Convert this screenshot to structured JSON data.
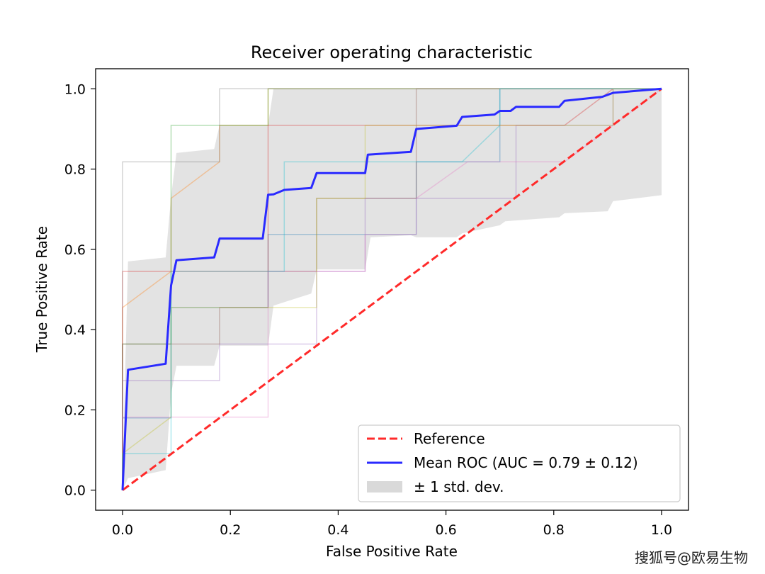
{
  "watermark": "搜狐号@欧易生物",
  "chart_data": {
    "type": "line",
    "title": "Receiver operating characteristic",
    "xlabel": "False Positive Rate",
    "ylabel": "True Positive Rate",
    "xlim": [
      -0.05,
      1.05
    ],
    "ylim": [
      -0.05,
      1.05
    ],
    "xticks": [
      "0.0",
      "0.2",
      "0.4",
      "0.6",
      "0.8",
      "1.0"
    ],
    "yticks": [
      "0.0",
      "0.2",
      "0.4",
      "0.6",
      "0.8",
      "1.0"
    ],
    "legend_position": "lower-right",
    "legend": [
      {
        "label": "Reference",
        "kind": "dashed-line",
        "color": "#ff2a2a"
      },
      {
        "label": "Mean ROC (AUC = 0.79 ± 0.12)",
        "kind": "line",
        "color": "#2a2aff"
      },
      {
        "label": "± 1 std. dev.",
        "kind": "patch",
        "color": "#d9d9d9"
      }
    ],
    "reference": {
      "x": [
        0,
        1
      ],
      "y": [
        0,
        1
      ],
      "color": "#ff2a2a"
    },
    "mean_roc": {
      "color": "#2a2aff",
      "x": [
        0,
        0.01,
        0.08,
        0.09,
        0.1,
        0.17,
        0.18,
        0.26,
        0.27,
        0.28,
        0.3,
        0.35,
        0.36,
        0.45,
        0.455,
        0.535,
        0.545,
        0.62,
        0.63,
        0.69,
        0.7,
        0.72,
        0.73,
        0.81,
        0.82,
        0.87,
        0.89,
        0.9,
        0.91,
        1.0
      ],
      "y": [
        0,
        0.3,
        0.315,
        0.51,
        0.573,
        0.58,
        0.627,
        0.627,
        0.736,
        0.737,
        0.748,
        0.753,
        0.79,
        0.79,
        0.836,
        0.843,
        0.9,
        0.908,
        0.93,
        0.936,
        0.945,
        0.945,
        0.955,
        0.955,
        0.97,
        0.977,
        0.98,
        0.985,
        0.99,
        1.0
      ]
    },
    "std_band": {
      "color": "#d9d9d9",
      "x": [
        0,
        0.01,
        0.08,
        0.09,
        0.1,
        0.17,
        0.18,
        0.27,
        0.28,
        0.35,
        0.36,
        0.45,
        0.46,
        0.535,
        0.545,
        0.62,
        0.63,
        0.7,
        0.71,
        0.81,
        0.82,
        0.9,
        0.91,
        1.0
      ],
      "upper": [
        0.04,
        0.57,
        0.58,
        0.73,
        0.84,
        0.85,
        0.91,
        0.91,
        1.0,
        1.0,
        1.0,
        1.0,
        1.0,
        1.0,
        1.0,
        1.0,
        1.0,
        1.0,
        1.0,
        1.0,
        1.0,
        1.0,
        1.0,
        1.0
      ],
      "lower": [
        0.0,
        0.03,
        0.05,
        0.24,
        0.31,
        0.31,
        0.36,
        0.36,
        0.46,
        0.49,
        0.55,
        0.55,
        0.63,
        0.635,
        0.63,
        0.63,
        0.64,
        0.66,
        0.67,
        0.68,
        0.69,
        0.695,
        0.72,
        0.735
      ]
    },
    "fold_curves": [
      {
        "color": "#1f77b4",
        "x": [
          0,
          0,
          0.09,
          0.09,
          0.27,
          0.27,
          0.45,
          0.45,
          0.545,
          0.545,
          0.7,
          0.7,
          1.0
        ],
        "y": [
          0,
          0.18,
          0.18,
          0.455,
          0.455,
          0.637,
          0.637,
          0.637,
          0.637,
          0.818,
          0.818,
          1.0,
          1.0
        ]
      },
      {
        "color": "#ff7f0e",
        "x": [
          0,
          0,
          0.09,
          0.09,
          0.18,
          0.18,
          0.27,
          0.27,
          0.45,
          0.45,
          0.63,
          0.63,
          1.0
        ],
        "y": [
          0,
          0.455,
          0.545,
          0.727,
          0.818,
          0.909,
          0.909,
          1.0,
          1.0,
          1.0,
          1.0,
          1.0,
          1.0
        ]
      },
      {
        "color": "#2ca02c",
        "x": [
          0,
          0,
          0.09,
          0.09,
          0.27,
          0.27,
          1.0
        ],
        "y": [
          0,
          0.364,
          0.364,
          0.909,
          0.909,
          1.0,
          1.0
        ]
      },
      {
        "color": "#d62728",
        "x": [
          0,
          0,
          0.27,
          0.27,
          0.82,
          0.91,
          1.0
        ],
        "y": [
          0,
          0.545,
          0.545,
          0.909,
          0.909,
          1.0,
          1.0
        ]
      },
      {
        "color": "#9467bd",
        "x": [
          0,
          0,
          0.18,
          0.18,
          0.36,
          0.36,
          0.45,
          0.45,
          0.73,
          0.73,
          0.91,
          0.91,
          1.0
        ],
        "y": [
          0,
          0.273,
          0.273,
          0.364,
          0.364,
          0.545,
          0.545,
          0.727,
          0.727,
          0.909,
          0.909,
          1.0,
          1.0
        ]
      },
      {
        "color": "#8c564b",
        "x": [
          0,
          0,
          0.18,
          0.18,
          0.27,
          0.27,
          0.36,
          0.36,
          0.545,
          0.545,
          1.0
        ],
        "y": [
          0,
          0.364,
          0.364,
          0.455,
          0.455,
          0.545,
          0.545,
          0.727,
          0.727,
          1.0,
          1.0
        ]
      },
      {
        "color": "#e377c2",
        "x": [
          0,
          0,
          0.27,
          0.27,
          0.45,
          0.45,
          0.545,
          0.545,
          0.64,
          0.82,
          1.0
        ],
        "y": [
          0,
          0.182,
          0.182,
          0.545,
          0.545,
          0.637,
          0.637,
          0.727,
          0.818,
          0.818,
          1.0
        ]
      },
      {
        "color": "#7f7f7f",
        "x": [
          0,
          0,
          0.18,
          0.18,
          0.27,
          0.27,
          1.0
        ],
        "y": [
          0,
          0.818,
          0.818,
          1.0,
          1.0,
          1.0,
          1.0
        ]
      },
      {
        "color": "#bcbd22",
        "x": [
          0,
          0,
          0.09,
          0.09,
          0.36,
          0.36,
          0.45,
          0.45,
          0.91,
          0.91,
          1.0
        ],
        "y": [
          0,
          0.091,
          0.182,
          0.455,
          0.455,
          0.727,
          0.727,
          0.909,
          0.909,
          1.0,
          1.0
        ]
      },
      {
        "color": "#17becf",
        "x": [
          0,
          0,
          0.09,
          0.09,
          0.3,
          0.3,
          0.63,
          0.7,
          0.7,
          1.0
        ],
        "y": [
          0,
          0.091,
          0.091,
          0.545,
          0.545,
          0.818,
          0.818,
          0.909,
          1.0,
          1.0
        ]
      }
    ]
  }
}
